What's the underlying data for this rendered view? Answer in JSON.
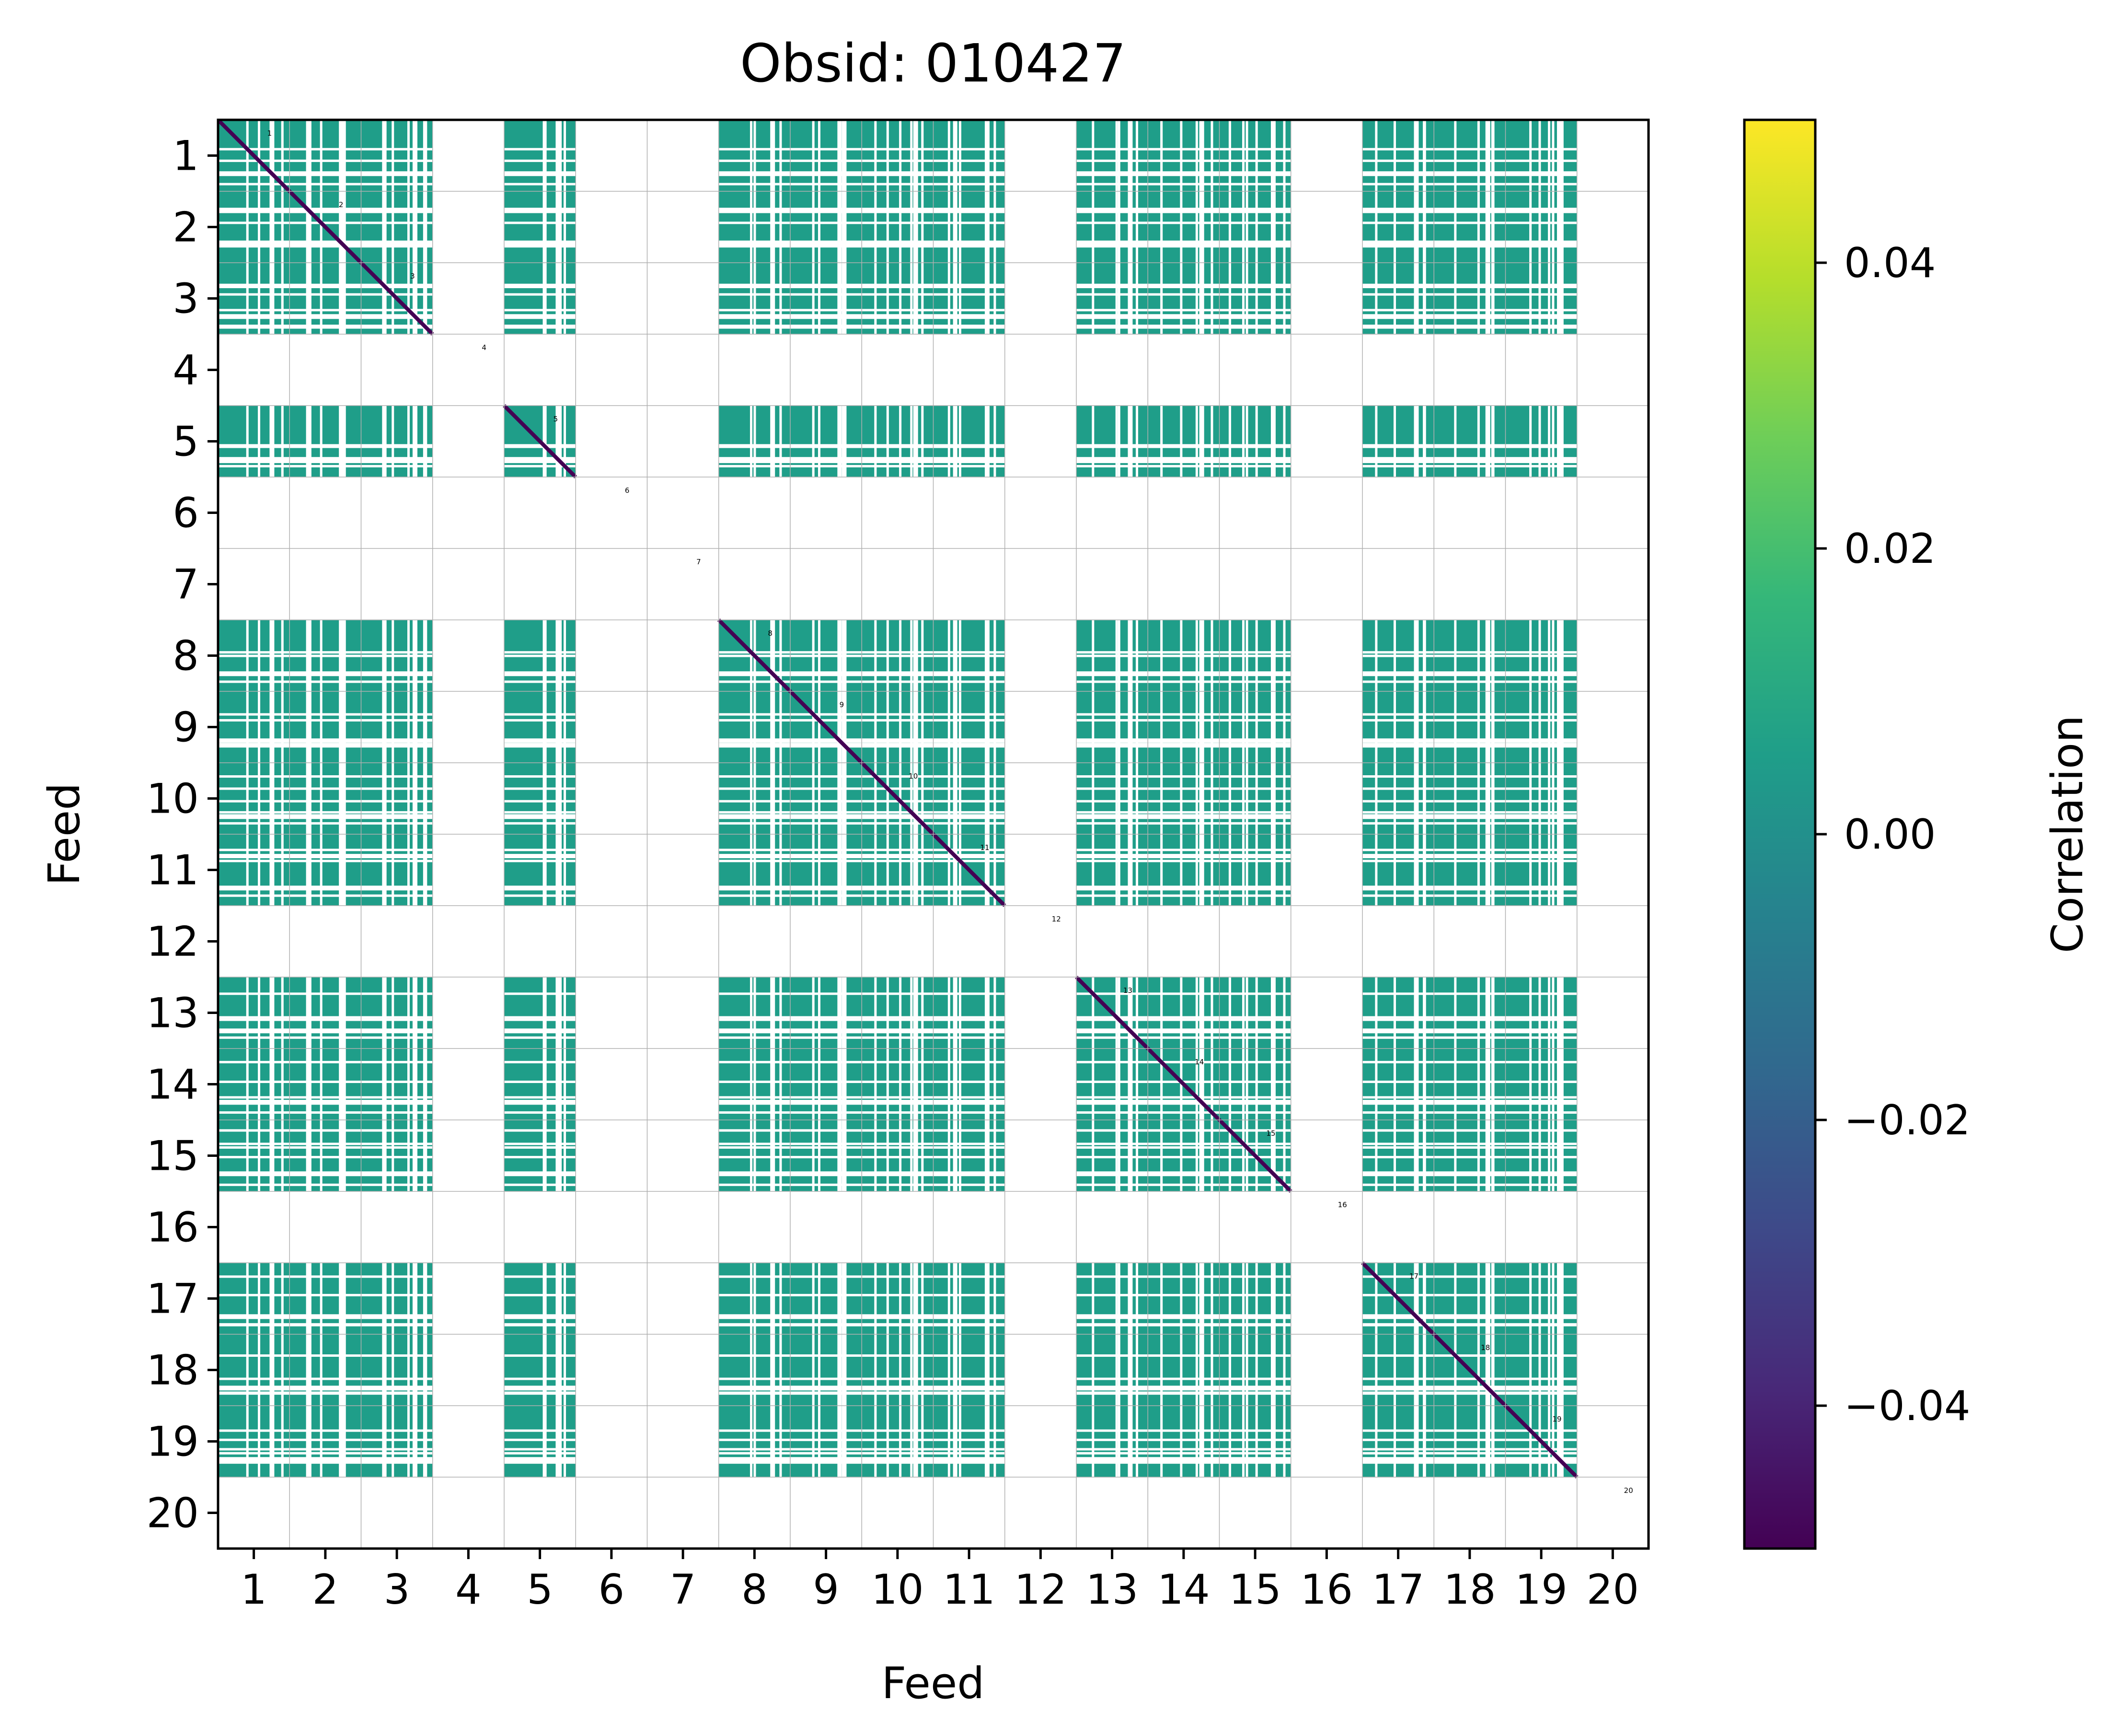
{
  "chart_data": {
    "type": "heatmap",
    "title": "Obsid: 010427",
    "xlabel": "Feed",
    "ylabel": "Feed",
    "feeds": [
      1,
      2,
      3,
      4,
      5,
      6,
      7,
      8,
      9,
      10,
      11,
      12,
      13,
      14,
      15,
      16,
      17,
      18,
      19,
      20
    ],
    "tick_labels": [
      "1",
      "2",
      "3",
      "4",
      "5",
      "6",
      "7",
      "8",
      "9",
      "10",
      "11",
      "12",
      "13",
      "14",
      "15",
      "16",
      "17",
      "18",
      "19",
      "20"
    ],
    "diagonal_labels": [
      "1",
      "2",
      "3",
      "4",
      "5",
      "6",
      "7",
      "8",
      "9",
      "10",
      "11",
      "12",
      "13",
      "14",
      "15",
      "16",
      "17",
      "18",
      "19",
      "20"
    ],
    "active_feeds": [
      1,
      2,
      3,
      5,
      8,
      9,
      10,
      11,
      13,
      14,
      15,
      17,
      18,
      19
    ],
    "inactive_feeds": [
      4,
      6,
      7,
      12,
      16,
      20
    ],
    "off_diagonal_correlation": 0.0,
    "diagonal_correlation": -0.05,
    "colorbar": {
      "label": "Correlation",
      "colormap": "viridis",
      "range": [
        -0.05,
        0.05
      ],
      "ticks": [
        0.04,
        0.02,
        0.0,
        -0.02,
        -0.04
      ],
      "tick_labels": [
        "0.04",
        "0.02",
        "0.00",
        "−0.02",
        "−0.04"
      ]
    },
    "colors": {
      "off_diagonal": "#21918c",
      "diagonal": "#482878",
      "masked": "#ffffff",
      "viridis_stops": [
        "#440154",
        "#482878",
        "#3e4989",
        "#31688e",
        "#26828e",
        "#1f9e89",
        "#35b779",
        "#6ece58",
        "#b5de2b",
        "#fde725"
      ]
    }
  }
}
